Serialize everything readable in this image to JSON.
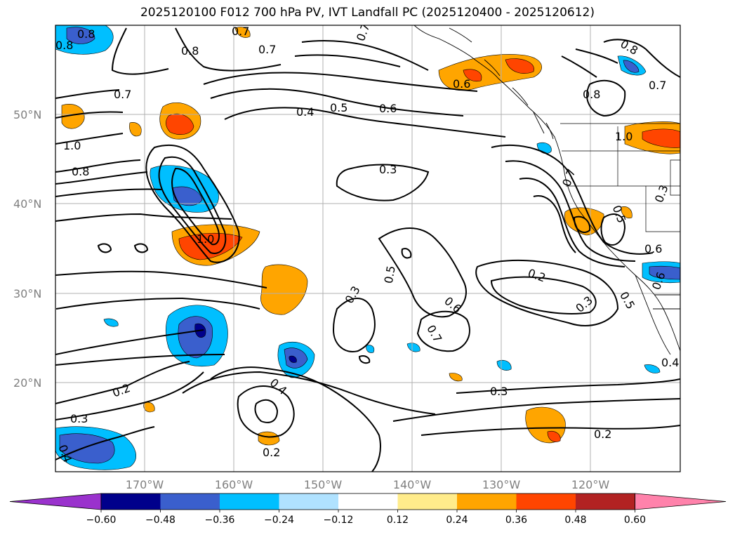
{
  "title": "2025120100 F012 700 hPa PV, IVT Landfall PC (2025120400 - 2025120612)",
  "axes": {
    "lat_labels": [
      "50°N",
      "40°N",
      "30°N",
      "20°N"
    ],
    "lon_labels": [
      "170°W",
      "160°W",
      "150°W",
      "140°W",
      "130°W",
      "120°W"
    ]
  },
  "colorbar": {
    "colors": [
      "#9a32cd",
      "#00008b",
      "#3a5fcd",
      "#00bfff",
      "#b0e2ff",
      "#ffffff",
      "#ffec8b",
      "#ffa500",
      "#ff4500",
      "#b22222",
      "#ff82ab"
    ],
    "tick_labels": [
      "-0.60",
      "-0.48",
      "-0.36",
      "-0.24",
      "-0.12",
      "0.12",
      "0.24",
      "0.36",
      "0.48",
      "0.60"
    ]
  },
  "contour_labels": [
    "0.8",
    "0.8",
    "0.7",
    "0.7",
    "0.8",
    "0.7",
    "0.6",
    "0.7",
    "0.8",
    "0.7",
    "1.0",
    "0.8",
    "0.4",
    "0.5",
    "0.6",
    "0.3",
    "0.8",
    "1.0",
    "1.0",
    "0.7",
    "0.6",
    "0.5",
    "0.3",
    "0.5",
    "0.6",
    "0.7",
    "0.2",
    "0.3",
    "0.5",
    "0.6",
    "0.3",
    "0.2",
    "0.3",
    "0.4",
    "0.2",
    "0.3",
    "0.2",
    "0.4",
    "0.4"
  ],
  "colors": {
    "positive_light": "#ffa500",
    "positive_mid": "#ff4500",
    "negative_light": "#00bfff",
    "negative_mid": "#3a5fcd",
    "negative_dark": "#00008b",
    "grid": "#b0b0b0"
  }
}
